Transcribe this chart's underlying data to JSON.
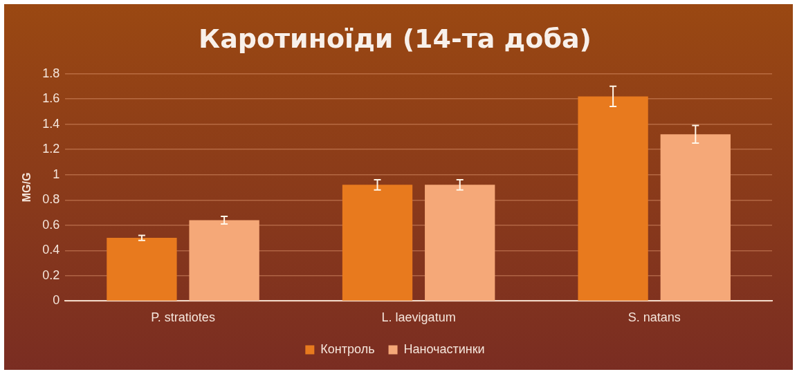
{
  "chart_data": {
    "type": "bar",
    "title": "Каротиноїди (14-та доба)",
    "ylabel": "MG/G",
    "categories": [
      "P. stratiotes",
      "L. laevigatum",
      "S. natans"
    ],
    "series": [
      {
        "name": "Контроль",
        "color": "#e87a1e",
        "values": [
          0.5,
          0.92,
          1.62
        ],
        "errors": [
          0.02,
          0.04,
          0.08
        ]
      },
      {
        "name": "Наночастинки",
        "color": "#f5a878",
        "values": [
          0.64,
          0.92,
          1.32
        ],
        "errors": [
          0.03,
          0.04,
          0.07
        ]
      }
    ],
    "ylim": [
      0,
      1.8
    ],
    "yticks": [
      0,
      0.2,
      0.4,
      0.6,
      0.8,
      1,
      1.2,
      1.4,
      1.6,
      1.8
    ],
    "grid": "y",
    "legend": "bottom"
  }
}
